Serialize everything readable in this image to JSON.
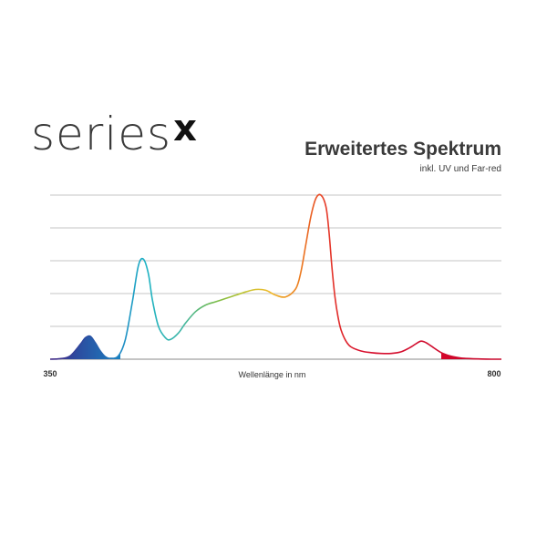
{
  "logo": {
    "word": "series",
    "mark": "x"
  },
  "chart_data": {
    "type": "line",
    "title": "Erweitertes Spektrum",
    "subtitle": "inkl. UV und Far-red",
    "xlabel": "Wellenlänge in nm",
    "ylabel": "",
    "xlim": [
      350,
      800
    ],
    "ylim": [
      0,
      1
    ],
    "x_tick_labels": [
      "350",
      "800"
    ],
    "grid": true,
    "grid_lines": 5,
    "legend": "none",
    "series": [
      {
        "x": [
          350,
          360,
          370,
          380,
          385,
          390,
          395,
          400,
          405,
          410,
          418,
          425,
          432,
          438,
          443,
          448,
          452,
          458,
          465,
          470,
          478,
          485,
          495,
          505,
          515,
          525,
          535,
          545,
          555,
          565,
          575,
          585,
          595,
          600,
          605,
          610,
          615,
          620,
          625,
          628,
          631,
          634,
          637,
          640,
          645,
          650,
          660,
          670,
          680,
          690,
          700,
          710,
          715,
          720,
          725,
          730,
          740,
          750,
          760,
          770,
          780,
          790,
          800
        ],
        "values": [
          0.0,
          0.003,
          0.02,
          0.09,
          0.13,
          0.14,
          0.1,
          0.05,
          0.015,
          0.005,
          0.02,
          0.12,
          0.35,
          0.57,
          0.61,
          0.52,
          0.36,
          0.2,
          0.13,
          0.12,
          0.16,
          0.22,
          0.29,
          0.33,
          0.35,
          0.37,
          0.39,
          0.41,
          0.425,
          0.42,
          0.39,
          0.38,
          0.43,
          0.53,
          0.7,
          0.87,
          0.98,
          1.0,
          0.93,
          0.78,
          0.56,
          0.38,
          0.26,
          0.18,
          0.11,
          0.075,
          0.05,
          0.04,
          0.035,
          0.035,
          0.045,
          0.075,
          0.095,
          0.11,
          0.1,
          0.08,
          0.04,
          0.018,
          0.007,
          0.003,
          0.001,
          0.0,
          0.0
        ]
      }
    ],
    "filled_regions": [
      {
        "from": 350,
        "to": 420,
        "color_start": "#3a2a8a",
        "color_end": "#1880c0"
      },
      {
        "from": 740,
        "to": 800,
        "color_start": "#d4062b",
        "color_end": "#c80024"
      }
    ],
    "colors": {
      "gradient": [
        [
          350,
          "#442a86"
        ],
        [
          385,
          "#2c4aa0"
        ],
        [
          420,
          "#1e88c4"
        ],
        [
          445,
          "#1cb2c4"
        ],
        [
          480,
          "#3fb6a8"
        ],
        [
          515,
          "#78bc4a"
        ],
        [
          545,
          "#c4c430"
        ],
        [
          570,
          "#f0b828"
        ],
        [
          600,
          "#ec7a20"
        ],
        [
          625,
          "#e63a28"
        ],
        [
          660,
          "#d8102e"
        ],
        [
          800,
          "#c8072c"
        ]
      ],
      "grid": "#c6c6c6",
      "baseline": "#888888"
    }
  }
}
